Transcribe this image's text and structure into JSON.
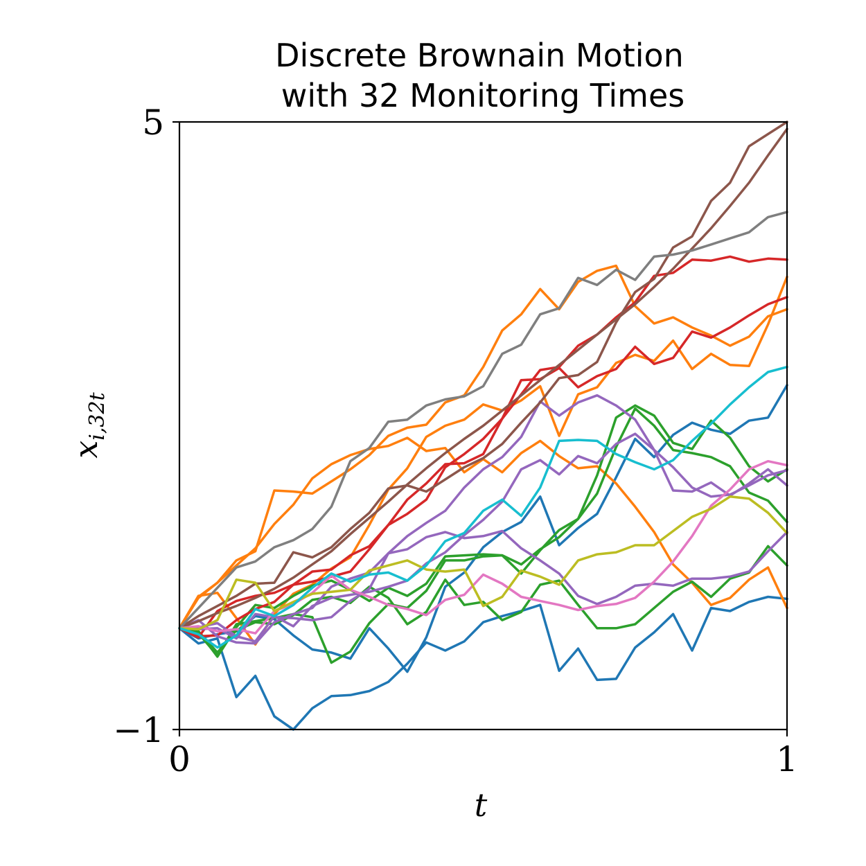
{
  "chart_data": {
    "type": "line",
    "title_line1": "Discrete Brownain Motion",
    "title_line2": "with 32 Monitoring Times",
    "xlabel": "t",
    "ylabel": "x",
    "ylabel_sub": "i,32t",
    "xlim": [
      0,
      1
    ],
    "ylim": [
      -1,
      5
    ],
    "x_ticks": [
      {
        "value": 0,
        "label": "0"
      },
      {
        "value": 1,
        "label": "1"
      }
    ],
    "y_ticks": [
      {
        "value": 5,
        "label": "5"
      },
      {
        "value": -1,
        "label": "−1"
      }
    ],
    "grid": false,
    "legend": "none",
    "series": [
      {
        "color": "#1f77b4",
        "values": [
          0.0,
          -0.15,
          -0.1,
          -0.68,
          -0.47,
          -0.87,
          -1.0,
          -0.79,
          -0.67,
          -0.66,
          -0.62,
          -0.53,
          -0.35,
          -0.14,
          -0.22,
          -0.13,
          0.06,
          0.12,
          0.17,
          0.23,
          -0.42,
          -0.2,
          -0.51,
          -0.5,
          -0.19,
          -0.04,
          0.14,
          -0.22,
          0.2,
          0.17,
          0.26,
          0.31,
          0.29
        ]
      },
      {
        "color": "#1f77b4",
        "values": [
          0.0,
          -0.1,
          -0.06,
          -0.03,
          0.12,
          0.09,
          -0.07,
          -0.21,
          -0.24,
          -0.3,
          0.0,
          -0.2,
          -0.43,
          -0.09,
          0.41,
          0.55,
          0.8,
          0.95,
          1.05,
          1.3,
          0.82,
          0.99,
          1.13,
          1.49,
          1.87,
          1.69,
          1.91,
          2.03,
          1.96,
          1.92,
          2.05,
          2.08,
          2.4
        ]
      },
      {
        "color": "#ff7f0e",
        "values": [
          0.0,
          0.32,
          0.35,
          0.1,
          -0.16,
          0.14,
          0.34,
          0.43,
          0.59,
          0.7,
          1.02,
          1.37,
          1.58,
          1.89,
          2.0,
          2.06,
          2.21,
          2.15,
          2.25,
          2.39,
          1.9,
          2.31,
          2.38,
          2.62,
          2.7,
          2.64,
          2.84,
          2.56,
          2.71,
          2.6,
          2.59,
          3.0,
          3.47
        ]
      },
      {
        "color": "#ff7f0e",
        "values": [
          0.0,
          0.31,
          0.45,
          0.67,
          0.76,
          1.36,
          1.35,
          1.33,
          1.45,
          1.57,
          1.71,
          1.9,
          1.98,
          2.01,
          2.23,
          2.3,
          2.58,
          2.94,
          3.1,
          3.35,
          3.15,
          3.42,
          3.53,
          3.58,
          3.18,
          3.01,
          3.07,
          2.97,
          2.89,
          2.79,
          2.88,
          3.08,
          3.15
        ]
      },
      {
        "color": "#ff7f0e",
        "values": [
          0.0,
          0.3,
          0.45,
          0.62,
          0.79,
          1.03,
          1.22,
          1.48,
          1.62,
          1.71,
          1.77,
          1.8,
          1.88,
          1.75,
          1.78,
          1.54,
          1.67,
          1.54,
          1.73,
          1.85,
          1.7,
          1.58,
          1.6,
          1.43,
          1.2,
          0.95,
          0.63,
          0.45,
          0.23,
          0.3,
          0.48,
          0.6,
          0.2
        ]
      },
      {
        "color": "#2ca02c",
        "values": [
          0.0,
          -0.03,
          -0.28,
          0.01,
          0.23,
          0.2,
          0.32,
          0.42,
          0.47,
          0.38,
          0.27,
          0.4,
          0.32,
          0.44,
          0.71,
          0.72,
          0.73,
          0.72,
          0.54,
          0.77,
          0.97,
          1.08,
          1.51,
          2.08,
          2.2,
          2.1,
          1.83,
          1.77,
          2.05,
          1.88,
          1.6,
          1.45,
          1.57
        ]
      },
      {
        "color": "#2ca02c",
        "values": [
          0.0,
          -0.05,
          -0.27,
          0.04,
          0.07,
          0.1,
          0.14,
          0.11,
          -0.34,
          -0.23,
          0.05,
          0.24,
          0.2,
          0.37,
          0.67,
          0.67,
          0.71,
          0.72,
          0.63,
          0.78,
          0.9,
          1.08,
          1.33,
          1.79,
          2.17,
          2.0,
          1.76,
          1.73,
          1.69,
          1.6,
          1.34,
          1.26,
          1.05
        ]
      },
      {
        "color": "#2ca02c",
        "values": [
          0.0,
          -0.03,
          -0.24,
          -0.02,
          0.06,
          0.04,
          0.13,
          0.28,
          0.31,
          0.25,
          0.41,
          0.3,
          0.04,
          0.16,
          0.48,
          0.23,
          0.26,
          0.08,
          0.16,
          0.43,
          0.47,
          0.23,
          0.0,
          0.0,
          0.04,
          0.2,
          0.36,
          0.46,
          0.31,
          0.49,
          0.55,
          0.81,
          0.62
        ]
      },
      {
        "color": "#d62728",
        "values": [
          0.0,
          -0.09,
          0.17,
          0.27,
          0.32,
          0.35,
          0.43,
          0.56,
          0.58,
          0.72,
          0.81,
          1.02,
          1.27,
          1.43,
          1.62,
          1.63,
          1.72,
          2.07,
          2.31,
          2.55,
          2.58,
          2.79,
          2.9,
          3.07,
          3.22,
          3.48,
          3.51,
          3.64,
          3.63,
          3.67,
          3.62,
          3.65,
          3.64
        ]
      },
      {
        "color": "#d62728",
        "values": [
          0.0,
          -0.08,
          -0.07,
          0.08,
          0.19,
          0.26,
          0.43,
          0.46,
          0.51,
          0.56,
          0.78,
          1.02,
          1.13,
          1.27,
          1.59,
          1.72,
          1.87,
          2.07,
          2.45,
          2.46,
          2.57,
          2.38,
          2.49,
          2.56,
          2.78,
          2.61,
          2.67,
          2.93,
          2.87,
          2.97,
          3.09,
          3.2,
          3.27
        ]
      },
      {
        "color": "#9467bd",
        "values": [
          0.0,
          0.01,
          0.05,
          -0.08,
          -0.13,
          0.12,
          0.02,
          0.22,
          0.3,
          0.33,
          0.36,
          0.41,
          0.47,
          0.64,
          0.75,
          0.92,
          1.07,
          1.25,
          1.57,
          1.66,
          1.52,
          1.7,
          1.63,
          1.82,
          1.92,
          1.76,
          1.36,
          1.35,
          1.44,
          1.31,
          1.43,
          1.57,
          1.41
        ]
      },
      {
        "color": "#9467bd",
        "values": [
          0.0,
          -0.01,
          0.0,
          -0.1,
          0.14,
          0.11,
          0.1,
          0.08,
          0.11,
          0.27,
          0.39,
          0.74,
          0.78,
          0.9,
          0.95,
          0.89,
          0.91,
          0.96,
          0.79,
          0.67,
          0.54,
          0.32,
          0.24,
          0.31,
          0.42,
          0.44,
          0.42,
          0.49,
          0.49,
          0.51,
          0.56,
          0.76,
          0.95
        ]
      },
      {
        "color": "#9467bd",
        "values": [
          0.0,
          0.08,
          -0.08,
          -0.14,
          -0.15,
          0.06,
          0.14,
          0.2,
          0.41,
          0.49,
          0.55,
          0.74,
          0.91,
          1.04,
          1.16,
          1.39,
          1.57,
          1.69,
          1.89,
          2.24,
          2.1,
          2.23,
          2.3,
          2.2,
          2.06,
          1.76,
          1.59,
          1.39,
          1.3,
          1.32,
          1.41,
          1.51,
          1.56
        ]
      },
      {
        "color": "#8c564b",
        "values": [
          0.0,
          0.12,
          0.22,
          0.32,
          0.44,
          0.45,
          0.75,
          0.7,
          0.8,
          0.98,
          1.14,
          1.38,
          1.41,
          1.35,
          1.47,
          1.59,
          1.68,
          1.82,
          2.03,
          2.23,
          2.47,
          2.5,
          2.63,
          3.02,
          3.32,
          3.45,
          3.76,
          3.87,
          4.22,
          4.4,
          4.76,
          4.88,
          5.0
        ]
      },
      {
        "color": "#8c564b",
        "values": [
          0.0,
          0.07,
          0.15,
          0.22,
          0.3,
          0.39,
          0.5,
          0.63,
          0.76,
          0.93,
          1.09,
          1.25,
          1.42,
          1.58,
          1.73,
          1.87,
          2.0,
          2.15,
          2.3,
          2.45,
          2.6,
          2.75,
          2.9,
          3.05,
          3.2,
          3.37,
          3.55,
          3.75,
          3.95,
          4.17,
          4.4,
          4.67,
          4.93
        ]
      },
      {
        "color": "#7f7f7f",
        "values": [
          0.0,
          0.2,
          0.4,
          0.6,
          0.66,
          0.8,
          0.87,
          0.98,
          1.2,
          1.65,
          1.78,
          2.04,
          2.06,
          2.2,
          2.26,
          2.29,
          2.39,
          2.71,
          2.8,
          3.1,
          3.16,
          3.46,
          3.39,
          3.54,
          3.44,
          3.67,
          3.69,
          3.73,
          3.79,
          3.85,
          3.91,
          4.06,
          4.11
        ]
      },
      {
        "color": "#e377c2",
        "values": [
          0.0,
          0.02,
          -0.03,
          -0.01,
          -0.05,
          0.17,
          0.24,
          0.35,
          0.52,
          0.38,
          0.31,
          0.23,
          0.19,
          0.13,
          0.28,
          0.33,
          0.53,
          0.44,
          0.31,
          0.27,
          0.23,
          0.18,
          0.22,
          0.24,
          0.3,
          0.46,
          0.66,
          0.91,
          1.21,
          1.37,
          1.57,
          1.65,
          1.61
        ]
      },
      {
        "color": "#bcbd22",
        "values": [
          0.0,
          -0.01,
          0.08,
          0.48,
          0.45,
          0.17,
          0.26,
          0.34,
          0.36,
          0.38,
          0.57,
          0.62,
          0.67,
          0.58,
          0.56,
          0.58,
          0.22,
          0.31,
          0.57,
          0.51,
          0.43,
          0.67,
          0.73,
          0.75,
          0.82,
          0.82,
          0.96,
          1.1,
          1.18,
          1.3,
          1.28,
          1.14,
          0.94
        ]
      },
      {
        "color": "#17becf",
        "values": [
          0.0,
          -0.06,
          -0.19,
          -0.07,
          0.19,
          0.12,
          0.23,
          0.4,
          0.54,
          0.46,
          0.53,
          0.55,
          0.47,
          0.62,
          0.86,
          0.94,
          1.16,
          1.27,
          1.11,
          1.39,
          1.85,
          1.86,
          1.85,
          1.72,
          1.64,
          1.57,
          1.66,
          1.85,
          2.02,
          2.21,
          2.38,
          2.53,
          2.58
        ]
      }
    ]
  }
}
